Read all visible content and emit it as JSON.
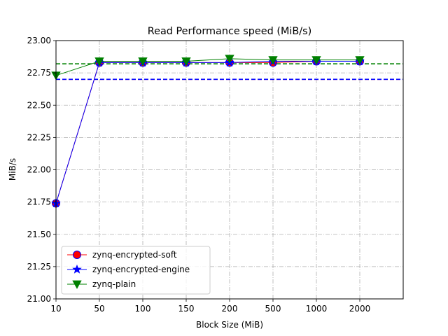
{
  "chart_data": {
    "type": "line",
    "title": "Read Performance speed (MiB/s)",
    "xlabel": "Block Size (MiB)",
    "ylabel": "MiB/s",
    "categories": [
      "10",
      "50",
      "100",
      "150",
      "200",
      "500",
      "1000",
      "2000"
    ],
    "ylim": [
      21.0,
      23.0
    ],
    "yticks": [
      "21.00",
      "21.25",
      "21.50",
      "21.75",
      "22.00",
      "22.25",
      "22.50",
      "22.75",
      "23.00"
    ],
    "grid": true,
    "legend_position": "lower-left",
    "series": [
      {
        "name": "zynq-encrypted-soft",
        "color": "#ff0000",
        "line_color": "#ff0000",
        "marker": "circle",
        "values": [
          21.74,
          22.83,
          22.83,
          22.83,
          22.83,
          22.83,
          22.84,
          22.84
        ],
        "mean": 22.7
      },
      {
        "name": "zynq-encrypted-engine",
        "color": "#0000ff",
        "line_color": "#0000ff",
        "marker": "star",
        "values": [
          21.74,
          22.83,
          22.83,
          22.83,
          22.83,
          22.84,
          22.84,
          22.84
        ],
        "mean": 22.7
      },
      {
        "name": "zynq-plain",
        "color": "#008000",
        "line_color": "#008000",
        "marker": "triangle-down",
        "values": [
          22.73,
          22.84,
          22.84,
          22.84,
          22.86,
          22.85,
          22.85,
          22.85
        ],
        "mean": 22.82
      }
    ]
  }
}
